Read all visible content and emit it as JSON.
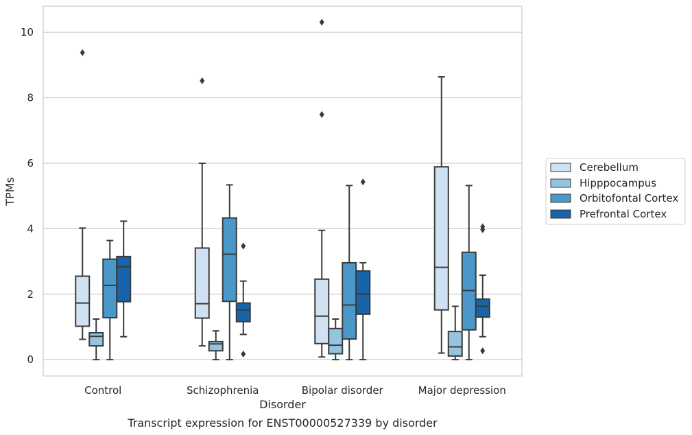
{
  "chart_data": {
    "type": "box",
    "title": "Transcript expression for ENST00000527339 by disorder",
    "xlabel": "Disorder",
    "ylabel": "TPMs",
    "ylim": [
      -0.5,
      10.8
    ],
    "yticks": [
      0,
      2,
      4,
      6,
      8,
      10
    ],
    "grid": "horizontal",
    "legend_placement": "center-right",
    "categories": [
      "Control",
      "Schizophrenia",
      "Bipolar disorder",
      "Major depression"
    ],
    "series": [
      {
        "name": "Cerebellum",
        "color": "#d0e1f2",
        "boxes": [
          {
            "whislo": 0.62,
            "q1": 1.02,
            "med": 1.73,
            "q3": 2.55,
            "whishi": 4.02,
            "fliers": [
              9.38
            ]
          },
          {
            "whislo": 0.42,
            "q1": 1.27,
            "med": 1.71,
            "q3": 3.41,
            "whishi": 6.0,
            "fliers": [
              8.52
            ]
          },
          {
            "whislo": 0.08,
            "q1": 0.49,
            "med": 1.33,
            "q3": 2.46,
            "whishi": 3.95,
            "fliers": [
              10.31,
              7.49
            ]
          },
          {
            "whislo": 0.2,
            "q1": 1.52,
            "med": 2.82,
            "q3": 5.89,
            "whishi": 8.64,
            "fliers": []
          }
        ]
      },
      {
        "name": "Hipppocampus",
        "color": "#94c4df",
        "boxes": [
          {
            "whislo": 0.0,
            "q1": 0.42,
            "med": 0.71,
            "q3": 0.82,
            "whishi": 1.24,
            "fliers": []
          },
          {
            "whislo": 0.0,
            "q1": 0.27,
            "med": 0.48,
            "q3": 0.55,
            "whishi": 0.88,
            "fliers": []
          },
          {
            "whislo": 0.0,
            "q1": 0.18,
            "med": 0.44,
            "q3": 0.95,
            "whishi": 1.24,
            "fliers": []
          },
          {
            "whislo": 0.0,
            "q1": 0.11,
            "med": 0.39,
            "q3": 0.86,
            "whishi": 1.63,
            "fliers": []
          }
        ]
      },
      {
        "name": "Orbitofontal Cortex",
        "color": "#4a98c9",
        "boxes": [
          {
            "whislo": 0.0,
            "q1": 1.28,
            "med": 2.27,
            "q3": 3.07,
            "whishi": 3.64,
            "fliers": []
          },
          {
            "whislo": 0.0,
            "q1": 1.78,
            "med": 3.22,
            "q3": 4.33,
            "whishi": 5.34,
            "fliers": []
          },
          {
            "whislo": 0.0,
            "q1": 0.63,
            "med": 1.67,
            "q3": 2.96,
            "whishi": 5.32,
            "fliers": []
          },
          {
            "whislo": 0.0,
            "q1": 0.91,
            "med": 2.11,
            "q3": 3.28,
            "whishi": 5.32,
            "fliers": []
          }
        ]
      },
      {
        "name": "Prefrontal Cortex",
        "color": "#1764ab",
        "boxes": [
          {
            "whislo": 0.7,
            "q1": 1.77,
            "med": 2.84,
            "q3": 3.15,
            "whishi": 4.23,
            "fliers": []
          },
          {
            "whislo": 0.77,
            "q1": 1.16,
            "med": 1.52,
            "q3": 1.73,
            "whishi": 2.4,
            "fliers": [
              3.47,
              0.17
            ]
          },
          {
            "whislo": 0.0,
            "q1": 1.39,
            "med": 2.0,
            "q3": 2.71,
            "whishi": 2.96,
            "fliers": [
              5.43
            ]
          },
          {
            "whislo": 0.7,
            "q1": 1.3,
            "med": 1.63,
            "q3": 1.85,
            "whishi": 2.58,
            "fliers": [
              4.06,
              3.97,
              0.27
            ]
          }
        ]
      }
    ]
  }
}
